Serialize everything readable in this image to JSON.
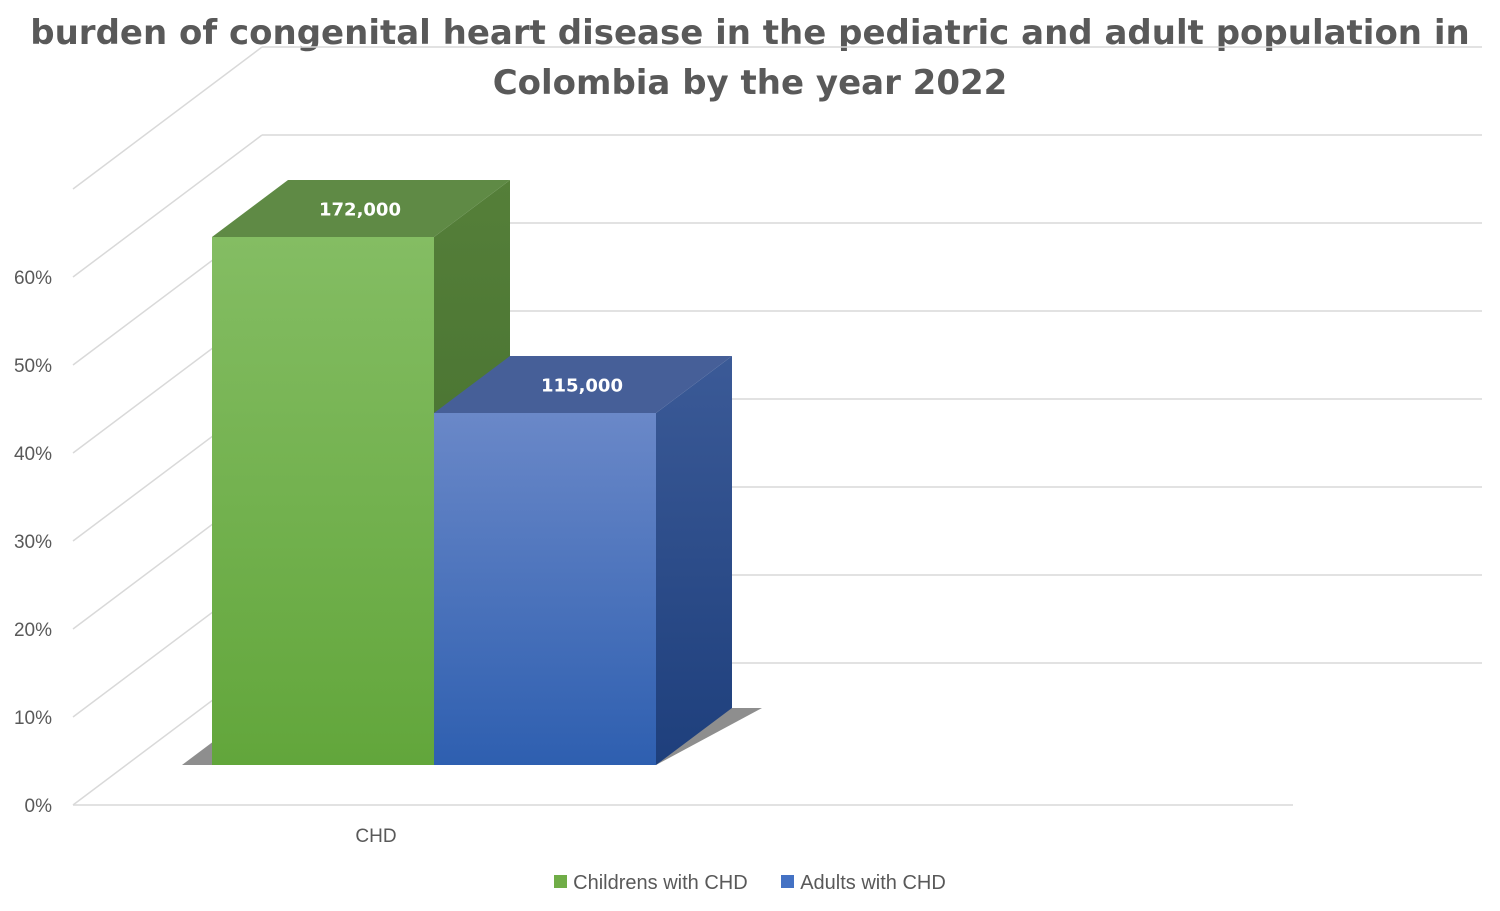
{
  "chart_data": {
    "type": "bar",
    "title": "burden of congenital heart disease in the pediatric and adult population in Colombia by the year 2022",
    "title_lines": [
      "burden of congenital heart disease in the pediatric and adult population in",
      "Colombia by the year 2022"
    ],
    "categories": [
      "CHD"
    ],
    "series": [
      {
        "name": "Childrens  with CHD",
        "values": [
          0.6
        ],
        "data_label": "172,000",
        "color": "#70ad47"
      },
      {
        "name": "Adults with CHD",
        "values": [
          0.4
        ],
        "data_label": "115,000",
        "color": "#4472c4"
      }
    ],
    "yticks": [
      "0%",
      "10%",
      "20%",
      "30%",
      "40%",
      "50%",
      "60%"
    ],
    "ylim": [
      0,
      0.7
    ],
    "xlabel": "",
    "ylabel": "",
    "grid": true,
    "legend_position": "bottom",
    "style": "3d-column"
  }
}
